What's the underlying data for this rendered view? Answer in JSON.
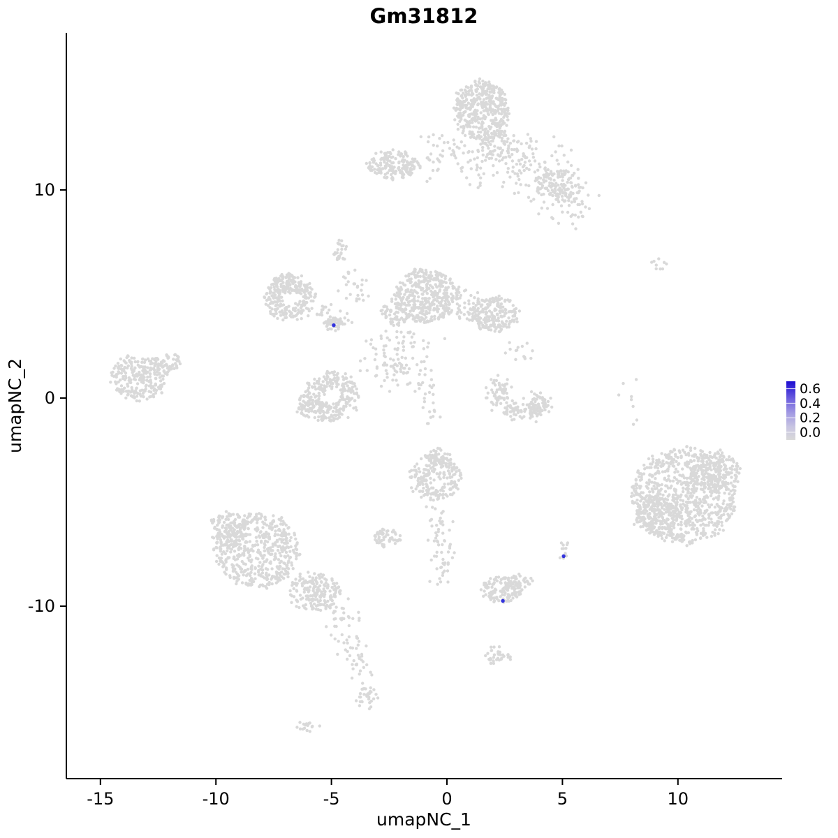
{
  "chart_data": {
    "type": "scatter",
    "title": "Gm31812",
    "xlabel": "umapNC_1",
    "ylabel": "umapNC_2",
    "xlim": [
      -16.5,
      14.5
    ],
    "ylim": [
      -18.3,
      17.5
    ],
    "grid": false,
    "point_color": "#d9d9d9",
    "highlight_color": "#3333dd",
    "axis_color": "#000000",
    "x_ticks": [
      {
        "value": -15,
        "label": "-15"
      },
      {
        "value": -10,
        "label": "-10"
      },
      {
        "value": -5,
        "label": "-5"
      },
      {
        "value": 0,
        "label": "0"
      },
      {
        "value": 5,
        "label": "5"
      },
      {
        "value": 10,
        "label": "10"
      }
    ],
    "y_ticks": [
      {
        "value": 10,
        "label": "10"
      },
      {
        "value": 0,
        "label": "0"
      },
      {
        "value": -10,
        "label": "-10"
      }
    ],
    "legend": {
      "position": "right",
      "ticks": [
        {
          "value": 0.6,
          "label": "0.6"
        },
        {
          "value": 0.4,
          "label": "0.4"
        },
        {
          "value": 0.2,
          "label": "0.2"
        },
        {
          "value": 0.0,
          "label": "0.0"
        }
      ],
      "gradient_stops": [
        {
          "offset": "0%",
          "color": "#1b0bd1"
        },
        {
          "offset": "30%",
          "color": "#6d5fde"
        },
        {
          "offset": "55%",
          "color": "#a49ce3"
        },
        {
          "offset": "78%",
          "color": "#c8c5e2"
        },
        {
          "offset": "100%",
          "color": "#d9d9d9"
        }
      ]
    },
    "highlighted_points": [
      {
        "x": -4.9,
        "y": 3.5,
        "value": 0.6
      },
      {
        "x": 2.42,
        "y": -9.75,
        "value": 0.6
      },
      {
        "x": 5.05,
        "y": -7.6,
        "value": 0.6
      }
    ],
    "clusters": [
      {
        "type": "blob",
        "cx": 1.5,
        "cy": 13.8,
        "rx": 1.2,
        "ry": 1.45,
        "n": 430
      },
      {
        "type": "blob",
        "cx": 2.3,
        "cy": 12.1,
        "rx": 0.8,
        "ry": 0.7,
        "n": 80
      },
      {
        "type": "trail",
        "x1": 2.9,
        "y1": 11.9,
        "x2": 5.6,
        "y2": 9.3,
        "jitter": 0.7,
        "n": 190
      },
      {
        "type": "blob",
        "cx": 5.0,
        "cy": 10.2,
        "rx": 0.85,
        "ry": 0.8,
        "n": 80
      },
      {
        "type": "trail",
        "x1": 0.9,
        "y1": 12.0,
        "x2": 1.3,
        "y2": 10.3,
        "jitter": 0.35,
        "n": 35
      },
      {
        "type": "blob",
        "cx": -2.3,
        "cy": 11.2,
        "rx": 1.1,
        "ry": 0.65,
        "n": 175
      },
      {
        "type": "trail",
        "x1": -1.1,
        "y1": 11.5,
        "x2": 0.7,
        "y2": 12.5,
        "jitter": 0.4,
        "n": 40
      },
      {
        "type": "blob",
        "cx": -4.6,
        "cy": 7.1,
        "rx": 0.3,
        "ry": 0.6,
        "n": 28
      },
      {
        "type": "trail",
        "x1": -4.4,
        "y1": 6.2,
        "x2": -3.5,
        "y2": 4.4,
        "jitter": 0.25,
        "n": 26
      },
      {
        "type": "ring",
        "cx": -6.8,
        "cy": 4.8,
        "r": 1.1,
        "w": 0.6,
        "n": 230
      },
      {
        "type": "blob",
        "cx": -7.0,
        "cy": 5.5,
        "rx": 0.6,
        "ry": 0.5,
        "n": 60
      },
      {
        "type": "trail",
        "x1": -5.7,
        "y1": 4.1,
        "x2": -4.5,
        "y2": 3.7,
        "jitter": 0.28,
        "n": 30
      },
      {
        "type": "blob",
        "cx": -4.9,
        "cy": 3.55,
        "rx": 0.4,
        "ry": 0.3,
        "n": 45
      },
      {
        "type": "blob",
        "cx": -0.9,
        "cy": 4.9,
        "rx": 1.35,
        "ry": 1.3,
        "n": 390
      },
      {
        "type": "blob",
        "cx": -2.2,
        "cy": 4.1,
        "rx": 0.65,
        "ry": 0.6,
        "n": 70
      },
      {
        "type": "blob",
        "cx": 2.0,
        "cy": 4.0,
        "rx": 1.05,
        "ry": 0.85,
        "n": 210
      },
      {
        "type": "trail",
        "x1": 0.3,
        "y1": 4.7,
        "x2": 1.3,
        "y2": 4.2,
        "jitter": 0.4,
        "n": 45
      },
      {
        "type": "trail",
        "x1": -3.1,
        "y1": 3.1,
        "x2": -2.1,
        "y2": 0.9,
        "jitter": 0.5,
        "n": 55
      },
      {
        "type": "trail",
        "x1": -1.3,
        "y1": 3.3,
        "x2": -2.5,
        "y2": 1.5,
        "jitter": 0.35,
        "n": 40
      },
      {
        "type": "ring",
        "cx": -5.0,
        "cy": 0.1,
        "r": 1.2,
        "w": 0.65,
        "n": 270
      },
      {
        "type": "blob",
        "cx": -6.0,
        "cy": -0.4,
        "rx": 0.55,
        "ry": 0.5,
        "n": 55
      },
      {
        "type": "blob",
        "cx": -13.3,
        "cy": 1.0,
        "rx": 1.25,
        "ry": 1.1,
        "n": 250
      },
      {
        "type": "blob",
        "cx": -12.0,
        "cy": 1.7,
        "rx": 0.5,
        "ry": 0.5,
        "n": 40
      },
      {
        "type": "arc",
        "cx": 3.2,
        "cy": 0.4,
        "r": 1.0,
        "a1": 150,
        "a2": 345,
        "jitter": 0.22,
        "n": 150
      },
      {
        "type": "blob",
        "cx": 4.0,
        "cy": -0.4,
        "rx": 0.45,
        "ry": 0.5,
        "n": 45
      },
      {
        "type": "trail",
        "x1": 2.8,
        "y1": 2.6,
        "x2": 3.4,
        "y2": 1.7,
        "jitter": 0.3,
        "n": 14
      },
      {
        "type": "blob",
        "cx": -0.5,
        "cy": -3.8,
        "rx": 1.15,
        "ry": 1.05,
        "n": 210
      },
      {
        "type": "blob",
        "cx": -0.4,
        "cy": -2.8,
        "rx": 0.55,
        "ry": 0.4,
        "n": 50
      },
      {
        "type": "trail",
        "x1": -1.0,
        "y1": 2.6,
        "x2": -0.7,
        "y2": -1.2,
        "jitter": 0.3,
        "n": 38
      },
      {
        "type": "trail",
        "x1": -0.4,
        "y1": -5.2,
        "x2": -0.1,
        "y2": -8.8,
        "jitter": 0.28,
        "n": 60
      },
      {
        "type": "blob",
        "cx": -8.2,
        "cy": -7.3,
        "rx": 1.8,
        "ry": 1.8,
        "n": 520
      },
      {
        "type": "blob",
        "cx": -9.4,
        "cy": -6.3,
        "rx": 0.9,
        "ry": 0.9,
        "n": 110
      },
      {
        "type": "blob",
        "cx": -5.7,
        "cy": -9.3,
        "rx": 1.15,
        "ry": 0.95,
        "n": 190
      },
      {
        "type": "trail",
        "x1": -4.8,
        "y1": -10.3,
        "x2": -3.6,
        "y2": -13.2,
        "jitter": 0.33,
        "n": 70
      },
      {
        "type": "blob",
        "cx": -3.5,
        "cy": -14.4,
        "rx": 0.45,
        "ry": 0.5,
        "n": 32
      },
      {
        "type": "blob",
        "cx": -6.0,
        "cy": -15.8,
        "rx": 0.55,
        "ry": 0.25,
        "n": 16
      },
      {
        "type": "blob",
        "cx": -2.6,
        "cy": -6.7,
        "rx": 0.6,
        "ry": 0.45,
        "n": 55
      },
      {
        "type": "blob",
        "cx": 2.4,
        "cy": -9.2,
        "rx": 0.9,
        "ry": 0.62,
        "n": 130
      },
      {
        "type": "blob",
        "cx": 3.2,
        "cy": -8.8,
        "rx": 0.4,
        "ry": 0.35,
        "n": 28
      },
      {
        "type": "blob",
        "cx": 2.2,
        "cy": -12.4,
        "rx": 0.5,
        "ry": 0.45,
        "n": 34
      },
      {
        "type": "blob",
        "cx": 5.1,
        "cy": -7.3,
        "rx": 0.22,
        "ry": 0.4,
        "n": 13
      },
      {
        "type": "blob",
        "cx": 10.3,
        "cy": -4.7,
        "rx": 2.3,
        "ry": 2.3,
        "n": 870
      },
      {
        "type": "blob",
        "cx": 9.1,
        "cy": -5.7,
        "rx": 1.0,
        "ry": 0.95,
        "n": 160
      },
      {
        "type": "blob",
        "cx": 11.6,
        "cy": -3.5,
        "rx": 1.05,
        "ry": 0.95,
        "n": 160
      },
      {
        "type": "blob",
        "cx": 9.2,
        "cy": 6.4,
        "rx": 0.28,
        "ry": 0.33,
        "n": 9
      },
      {
        "type": "trail",
        "x1": 7.9,
        "y1": 1.1,
        "x2": 8.2,
        "y2": -1.4,
        "jitter": 0.25,
        "n": 8
      }
    ]
  }
}
